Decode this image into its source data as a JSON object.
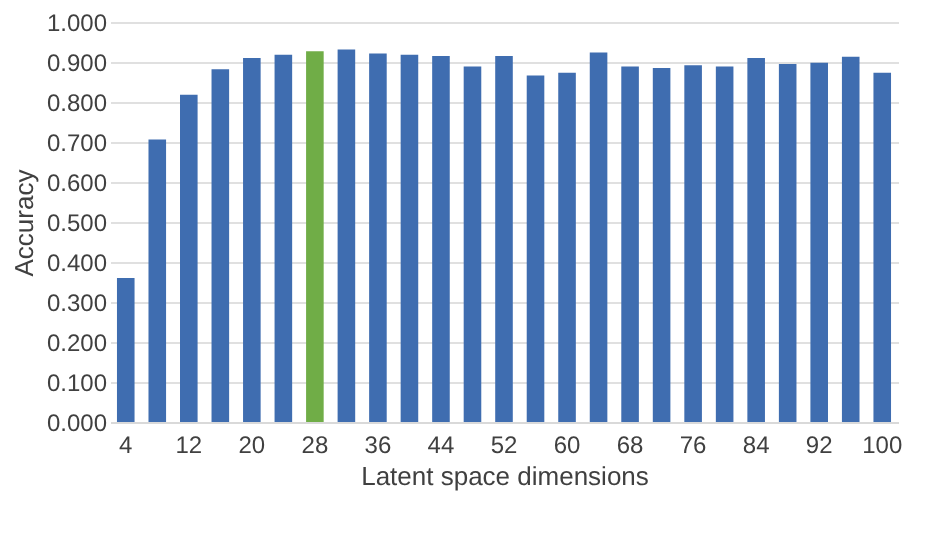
{
  "chart_data": {
    "type": "bar",
    "xlabel": "Latent space dimensions",
    "ylabel": "Accuracy",
    "categories": [
      "4",
      null,
      "12",
      null,
      "20",
      null,
      "28",
      null,
      "36",
      null,
      "44",
      null,
      "52",
      null,
      "60",
      null,
      "68",
      null,
      "76",
      null,
      "84",
      null,
      "92",
      null,
      "100"
    ],
    "values": [
      0.36,
      0.706,
      0.818,
      0.882,
      0.91,
      0.918,
      0.927,
      0.931,
      0.921,
      0.918,
      0.915,
      0.889,
      0.915,
      0.866,
      0.873,
      0.924,
      0.889,
      0.885,
      0.892,
      0.889,
      0.91,
      0.895,
      0.898,
      0.913,
      0.873
    ],
    "colors": [
      "#3f6db0",
      "#3f6db0",
      "#3f6db0",
      "#3f6db0",
      "#3f6db0",
      "#3f6db0",
      "#70ad47",
      "#3f6db0",
      "#3f6db0",
      "#3f6db0",
      "#3f6db0",
      "#3f6db0",
      "#3f6db0",
      "#3f6db0",
      "#3f6db0",
      "#3f6db0",
      "#3f6db0",
      "#3f6db0",
      "#3f6db0",
      "#3f6db0",
      "#3f6db0",
      "#3f6db0",
      "#3f6db0",
      "#3f6db0",
      "#3f6db0"
    ],
    "ylim": [
      0,
      1
    ],
    "yticks": [
      {
        "value": 0,
        "label": "0.000"
      },
      {
        "value": 0.1,
        "label": "0.100"
      },
      {
        "value": 0.2,
        "label": "0.200"
      },
      {
        "value": 0.3,
        "label": "0.300"
      },
      {
        "value": 0.4,
        "label": "0.400"
      },
      {
        "value": 0.5,
        "label": "0.500"
      },
      {
        "value": 0.6,
        "label": "0.600"
      },
      {
        "value": 0.7,
        "label": "0.700"
      },
      {
        "value": 0.8,
        "label": "0.800"
      },
      {
        "value": 0.9,
        "label": "0.900"
      },
      {
        "value": 1,
        "label": "1.000"
      }
    ],
    "grid": "y"
  }
}
